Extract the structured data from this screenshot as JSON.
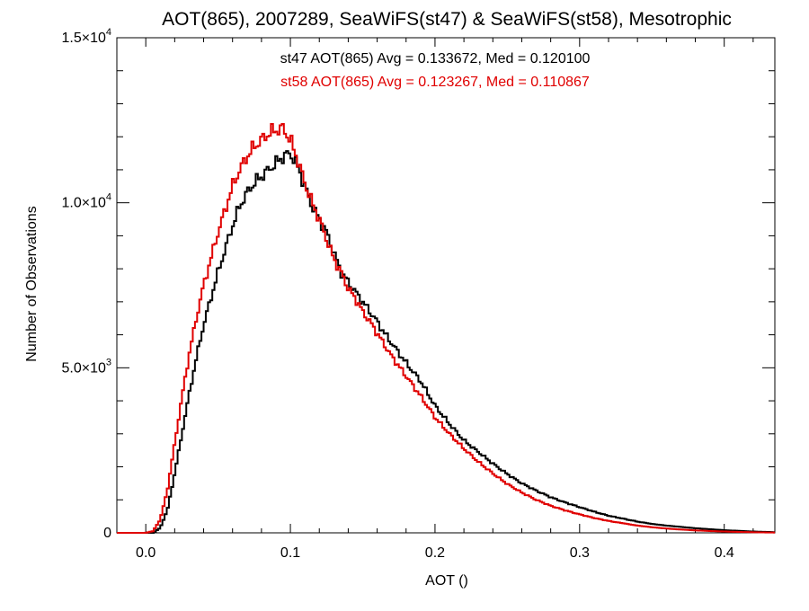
{
  "chart_data": {
    "type": "line",
    "title": "AOT(865), 2007289, SeaWiFS(st47) & SeaWiFS(st58), Mesotrophic",
    "xlabel": "AOT ()",
    "ylabel": "Number of Observations",
    "xlim": [
      -0.02,
      0.435
    ],
    "ylim": [
      0,
      15000
    ],
    "grid": false,
    "step": true,
    "x_ticks": [
      {
        "value": 0.0,
        "label": "0.0"
      },
      {
        "value": 0.1,
        "label": "0.1"
      },
      {
        "value": 0.2,
        "label": "0.2"
      },
      {
        "value": 0.3,
        "label": "0.3"
      },
      {
        "value": 0.4,
        "label": "0.4"
      }
    ],
    "y_ticks": [
      {
        "value": 0,
        "mantissa": "0",
        "exponent": ""
      },
      {
        "value": 5000,
        "mantissa": "5.0×10",
        "exponent": "3"
      },
      {
        "value": 10000,
        "mantissa": "1.0×10",
        "exponent": "4"
      },
      {
        "value": 15000,
        "mantissa": "1.5×10",
        "exponent": "4"
      }
    ],
    "annotations": [
      {
        "text": "st47 AOT(865) Avg = 0.133672, Med = 0.120100",
        "color": "#000000"
      },
      {
        "text": "st58 AOT(865) Avg = 0.123267, Med = 0.110867",
        "color": "#e00000"
      }
    ],
    "x": [
      -0.02,
      0.0,
      0.005,
      0.01,
      0.015,
      0.02,
      0.025,
      0.03,
      0.035,
      0.04,
      0.045,
      0.05,
      0.055,
      0.06,
      0.065,
      0.07,
      0.075,
      0.08,
      0.085,
      0.09,
      0.095,
      0.1,
      0.105,
      0.11,
      0.115,
      0.12,
      0.125,
      0.13,
      0.135,
      0.14,
      0.145,
      0.15,
      0.155,
      0.16,
      0.165,
      0.17,
      0.175,
      0.18,
      0.19,
      0.2,
      0.21,
      0.22,
      0.23,
      0.24,
      0.25,
      0.26,
      0.27,
      0.28,
      0.29,
      0.3,
      0.31,
      0.32,
      0.33,
      0.34,
      0.35,
      0.36,
      0.37,
      0.38,
      0.39,
      0.4,
      0.41,
      0.42,
      0.435
    ],
    "series": [
      {
        "color": "#000000",
        "values": [
          0,
          0,
          0,
          150,
          700,
          1800,
          3000,
          4200,
          5300,
          6300,
          7100,
          7900,
          8600,
          9300,
          9900,
          10300,
          10600,
          10800,
          11000,
          11200,
          11400,
          11500,
          11100,
          10500,
          9900,
          9500,
          9100,
          8500,
          7900,
          7600,
          7300,
          7000,
          6700,
          6400,
          6050,
          5750,
          5450,
          5150,
          4600,
          3850,
          3300,
          2800,
          2450,
          2100,
          1780,
          1500,
          1280,
          1080,
          920,
          780,
          640,
          520,
          430,
          340,
          270,
          220,
          180,
          140,
          110,
          80,
          60,
          40,
          20
        ]
      },
      {
        "color": "#e00000",
        "values": [
          0,
          0,
          50,
          400,
          1300,
          2700,
          4100,
          5400,
          6500,
          7500,
          8300,
          9100,
          9800,
          10500,
          11000,
          11400,
          11700,
          11900,
          12100,
          12200,
          12250,
          11900,
          11300,
          10600,
          10000,
          9500,
          8900,
          8300,
          7900,
          7400,
          7100,
          6700,
          6400,
          6050,
          5700,
          5350,
          5050,
          4750,
          4150,
          3500,
          3000,
          2550,
          2150,
          1800,
          1480,
          1220,
          1000,
          820,
          680,
          560,
          450,
          360,
          290,
          220,
          170,
          130,
          100,
          75,
          55,
          40,
          28,
          18,
          8
        ]
      }
    ]
  }
}
